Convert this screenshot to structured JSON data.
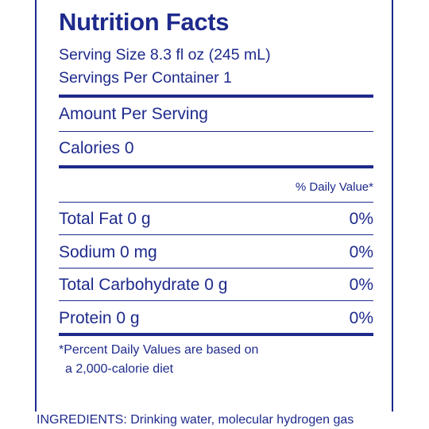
{
  "label": {
    "title": "Nutrition Facts",
    "serving_size": "Serving Size 8.3 fl oz (245 mL)",
    "servings_per_container": "Servings Per Container 1",
    "amount_per_serving": "Amount Per Serving",
    "calories": "Calories 0",
    "daily_value_header": "% Daily Value*",
    "nutrients": [
      {
        "name": "Total Fat 0 g",
        "dv": "0%"
      },
      {
        "name": "Sodium 0 mg",
        "dv": "0%"
      },
      {
        "name": "Total Carbohydrate 0 g",
        "dv": "0%"
      },
      {
        "name": "Protein 0 g",
        "dv": "0%"
      }
    ],
    "footnote_line1": "*Percent Daily Values are based on",
    "footnote_line2": "a 2,000-calorie diet"
  },
  "ingredients": "INGREDIENTS: Drinking water, molecular hydrogen gas",
  "colors": {
    "text": "#1e2a8c",
    "background": "#ffffff"
  }
}
